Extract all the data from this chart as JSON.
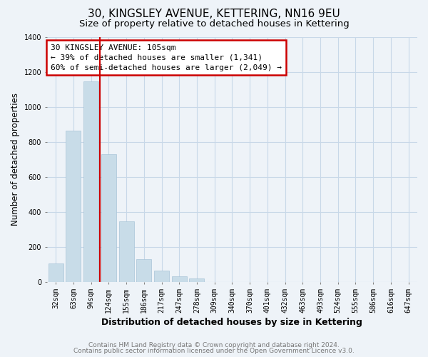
{
  "title1": "30, KINGSLEY AVENUE, KETTERING, NN16 9EU",
  "title2": "Size of property relative to detached houses in Kettering",
  "xlabel": "Distribution of detached houses by size in Kettering",
  "ylabel": "Number of detached properties",
  "categories": [
    "32sqm",
    "63sqm",
    "94sqm",
    "124sqm",
    "155sqm",
    "186sqm",
    "217sqm",
    "247sqm",
    "278sqm",
    "309sqm",
    "340sqm",
    "370sqm",
    "401sqm",
    "432sqm",
    "463sqm",
    "493sqm",
    "524sqm",
    "555sqm",
    "586sqm",
    "616sqm",
    "647sqm"
  ],
  "values": [
    105,
    865,
    1145,
    730,
    345,
    130,
    62,
    32,
    18,
    0,
    0,
    0,
    0,
    0,
    0,
    0,
    0,
    0,
    0,
    0,
    0
  ],
  "bar_color": "#c8dce8",
  "vline_color": "#cc0000",
  "vline_pos": 2.5,
  "annotation_lines": [
    "30 KINGSLEY AVENUE: 105sqm",
    "← 39% of detached houses are smaller (1,341)",
    "60% of semi-detached houses are larger (2,049) →"
  ],
  "ylim": [
    0,
    1400
  ],
  "yticks": [
    0,
    200,
    400,
    600,
    800,
    1000,
    1200,
    1400
  ],
  "footer1": "Contains HM Land Registry data © Crown copyright and database right 2024.",
  "footer2": "Contains public sector information licensed under the Open Government Licence v3.0.",
  "bg_color": "#eef3f8",
  "plot_bg_color": "#eef3f8",
  "grid_color": "#c8d8e8",
  "title1_fontsize": 11,
  "title2_fontsize": 9.5,
  "tick_fontsize": 7,
  "ylabel_fontsize": 8.5,
  "xlabel_fontsize": 9,
  "annotation_fontsize": 8,
  "footer_fontsize": 6.5,
  "footer_color": "#777777"
}
